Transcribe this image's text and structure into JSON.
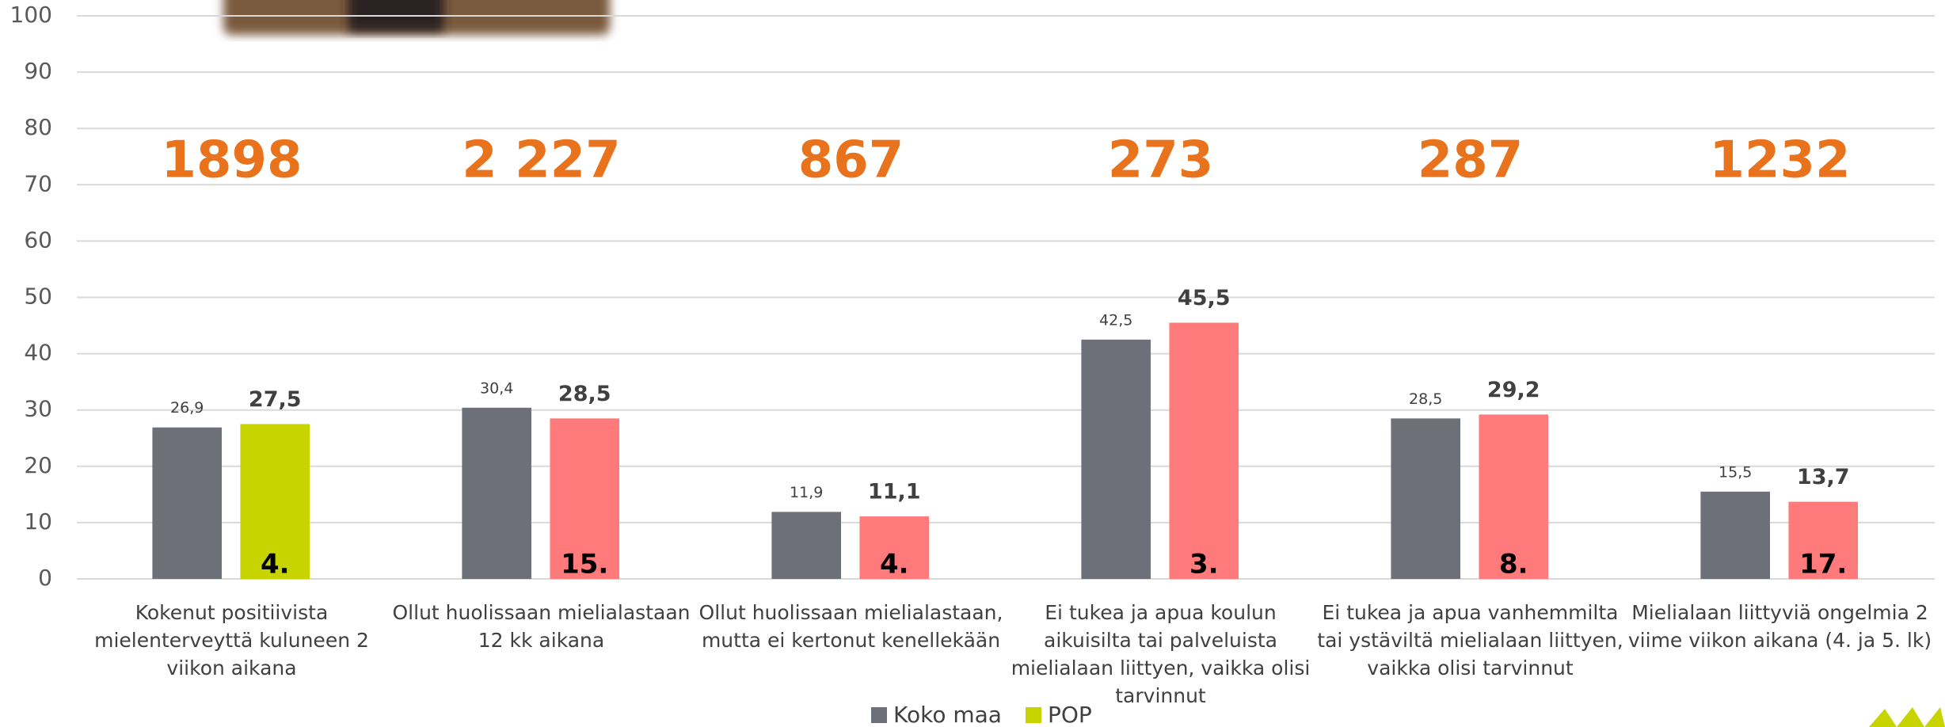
{
  "chart_data": {
    "type": "bar",
    "categories": [
      "Kokenut positiivista mielenterveyttä kuluneen 2 viikon aikana",
      "Ollut huolissaan mielialastaan 12 kk aikana",
      "Ollut huolissaan mielialastaan, mutta ei kertonut kenellekään",
      "Ei tukea ja apua koulun aikuisilta tai palveluista mielialaan liittyen, vaikka olisi tarvinnut",
      "Ei tukea ja apua vanhemmilta tai ystäviltä mielialaan liittyen, vaikka olisi tarvinnut",
      "Mielialaan liittyviä ongelmia 2 viime viikon aikana (4. ja 5. lk)"
    ],
    "series": [
      {
        "name": "Koko maa",
        "color": "#6d7079",
        "values": [
          26.9,
          30.4,
          11.9,
          42.5,
          28.5,
          15.5
        ],
        "value_labels": [
          "26,9",
          "30,4",
          "11,9",
          "42,5",
          "28,5",
          "15,5"
        ]
      },
      {
        "name": "POP",
        "color": "#c8d400",
        "colors": [
          "#c8d400",
          "#ff7b7b",
          "#ff7b7b",
          "#ff7b7b",
          "#ff7b7b",
          "#ff7b7b"
        ],
        "values": [
          27.5,
          28.5,
          11.1,
          45.5,
          29.2,
          13.7
        ],
        "value_labels": [
          "27,5",
          "28,5",
          "11,1",
          "45,5",
          "29,2",
          "13,7"
        ],
        "ranks": [
          "4.",
          "15.",
          "4.",
          "3.",
          "8.",
          "17."
        ]
      }
    ],
    "annotations": [
      "1898",
      "2 227",
      "867",
      "273",
      "287",
      "1232"
    ],
    "ylim": [
      0,
      100
    ],
    "yticks": [
      0,
      10,
      20,
      30,
      40,
      50,
      60,
      70,
      80,
      90,
      100
    ],
    "grid": true,
    "legend": "bottom"
  }
}
